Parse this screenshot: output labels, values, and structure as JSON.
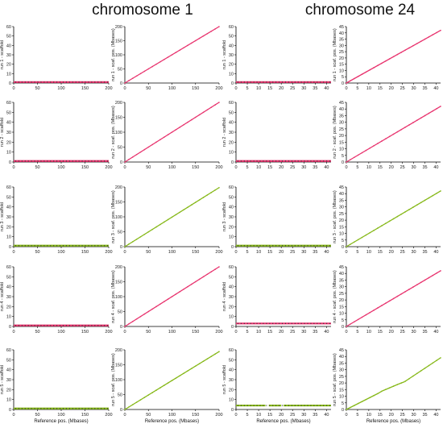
{
  "titles": [
    "chromosome 1",
    "chromosome 24"
  ],
  "colors": {
    "pink": "#e8336e",
    "green": "#86b818",
    "axis": "#000000"
  },
  "chart_data": {
    "type": "scatter",
    "layout": "grid 5 rows x 4 columns",
    "columns": [
      {
        "chromosome": "chromosome 1",
        "kind": "scaffold",
        "xlim": [
          0,
          200
        ],
        "xticks": [
          0,
          50,
          100,
          150,
          200
        ],
        "ylim": [
          0,
          60
        ],
        "yticks": [
          0,
          10,
          20,
          30,
          40,
          50,
          60
        ]
      },
      {
        "chromosome": "chromosome 1",
        "kind": "position",
        "xlim": [
          0,
          200
        ],
        "xticks": [
          0,
          50,
          100,
          150,
          200
        ],
        "ylim": [
          0,
          200
        ],
        "yticks": [
          0,
          50,
          100,
          150,
          200
        ]
      },
      {
        "chromosome": "chromosome 24",
        "kind": "scaffold",
        "xlim": [
          0,
          42
        ],
        "xticks": [
          0,
          5,
          10,
          15,
          20,
          25,
          30,
          35,
          40
        ],
        "ylim": [
          0,
          60
        ],
        "yticks": [
          0,
          10,
          20,
          30,
          40,
          50,
          60
        ]
      },
      {
        "chromosome": "chromosome 24",
        "kind": "position",
        "xlim": [
          0,
          42
        ],
        "xticks": [
          0,
          5,
          10,
          15,
          20,
          25,
          30,
          35,
          40
        ],
        "ylim": [
          0,
          45
        ],
        "yticks": [
          0,
          5,
          10,
          15,
          20,
          25,
          30,
          35,
          40,
          45
        ]
      }
    ],
    "rows": [
      {
        "run": 1,
        "color": "pink",
        "scaf_ylabel": "run 1 - scaffold",
        "pos_ylabel": "run 1 - scaf. pos. (Mbases)",
        "chr1_scaffold": 1,
        "chr24_scaffold": 1,
        "chr1_pos": [
          [
            0,
            0
          ],
          [
            200,
            200
          ]
        ],
        "chr24_pos": [
          [
            0,
            0
          ],
          [
            42,
            42
          ]
        ]
      },
      {
        "run": 2,
        "color": "pink",
        "scaf_ylabel": "run 2 - scaffold",
        "pos_ylabel": "run 2 - scaf. pos. (Mbases)",
        "chr1_scaffold": 1,
        "chr24_scaffold": 1,
        "chr1_pos": [
          [
            0,
            0
          ],
          [
            200,
            200
          ]
        ],
        "chr24_pos": [
          [
            0,
            0
          ],
          [
            42,
            42
          ]
        ]
      },
      {
        "run": 3,
        "color": "green",
        "scaf_ylabel": "run 3 - scaffold",
        "pos_ylabel": "run 3 - scaf. pos. (Mbases)",
        "chr1_scaffold": 1,
        "chr24_scaffold": 1,
        "chr1_pos": [
          [
            0,
            0
          ],
          [
            200,
            198
          ]
        ],
        "chr24_pos": [
          [
            0,
            0
          ],
          [
            42,
            42
          ]
        ]
      },
      {
        "run": 4,
        "color": "pink",
        "scaf_ylabel": "run 4 - scaffold",
        "pos_ylabel": "run 4 - scaf. pos. (Mbases)",
        "chr1_scaffold": 1,
        "chr24_scaffold": 3,
        "chr1_pos": [
          [
            0,
            0
          ],
          [
            200,
            200
          ]
        ],
        "chr24_pos": [
          [
            0,
            0
          ],
          [
            42,
            42
          ]
        ]
      },
      {
        "run": 5,
        "color": "green",
        "scaf_ylabel": "run 5 - scaffold",
        "pos_ylabel": "run 5 - scaf. pos. (Mbases)",
        "chr1_scaffold": 1,
        "chr24_scaffold": 4,
        "chr1_pos": [
          [
            0,
            0
          ],
          [
            100,
            97
          ],
          [
            200,
            194
          ]
        ],
        "chr24_pos": [
          [
            0,
            0
          ],
          [
            14,
            12
          ],
          [
            16,
            14
          ],
          [
            23,
            19
          ],
          [
            26,
            21
          ],
          [
            42,
            39
          ]
        ]
      }
    ],
    "xlabel": "Reference pos. (Mbases)"
  }
}
